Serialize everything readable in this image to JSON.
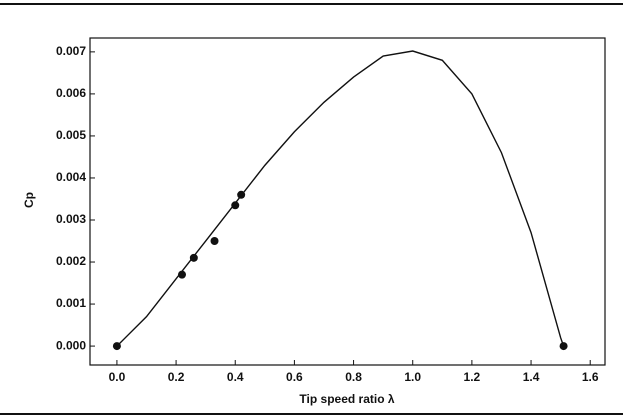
{
  "chart_data": {
    "type": "scatter",
    "xlabel": "Tip speed ratio λ",
    "ylabel": "Cp",
    "xlim": [
      -0.091,
      1.65
    ],
    "ylim": [
      -0.00045,
      0.00733
    ],
    "xticks": [
      {
        "value": 0,
        "label": "0.0"
      },
      0.2,
      0.4,
      0.6,
      0.8,
      {
        "value": 1,
        "label": "1.0"
      },
      1.2,
      1.4,
      1.6
    ],
    "yticks": [
      {
        "value": 0,
        "label": "0.000"
      },
      {
        "value": 0.001,
        "label": "0.001"
      },
      {
        "value": 0.002,
        "label": "0.002"
      },
      {
        "value": 0.003,
        "label": "0.003"
      },
      {
        "value": 0.004,
        "label": "0.004"
      },
      {
        "value": 0.005,
        "label": "0.005"
      },
      {
        "value": 0.006,
        "label": "0.006"
      },
      {
        "value": 0.007,
        "label": "0.007"
      }
    ],
    "series": [
      {
        "style": "line",
        "color": "#111111",
        "x": [
          0,
          0.1,
          0.2,
          0.3,
          0.4,
          0.5,
          0.6,
          0.7,
          0.8,
          0.9,
          1.0,
          1.1,
          1.2,
          1.3,
          1.4,
          1.5,
          1.51
        ],
        "values": [
          0,
          0.0007,
          0.0016,
          0.0025,
          0.0034,
          0.0043,
          0.0051,
          0.0058,
          0.0064,
          0.0069,
          0.00702,
          0.0068,
          0.006,
          0.0046,
          0.0027,
          0.0002,
          0
        ]
      },
      {
        "style": "markers",
        "color": "#111111",
        "x": [
          0,
          0.22,
          0.26,
          0.33,
          0.4,
          0.42,
          1.51
        ],
        "values": [
          0,
          0.0017,
          0.0021,
          0.0025,
          0.00335,
          0.0036,
          0
        ]
      }
    ]
  }
}
